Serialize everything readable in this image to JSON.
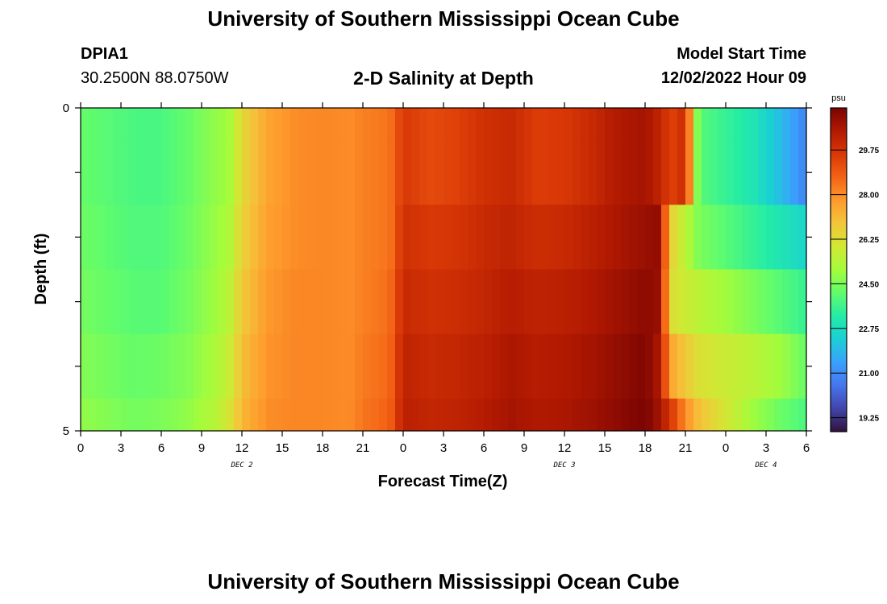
{
  "header": {
    "title": "University of Southern Mississippi Ocean Cube",
    "footer_title": "University of Southern Mississippi Ocean Cube",
    "station_id": "DPIA1",
    "station_coords": "30.2500N  88.0750W",
    "plot_title": "2-D Salinity at Depth",
    "model_start_label": "Model Start Time",
    "model_start_value": "12/02/2022 Hour 09"
  },
  "chart_data": {
    "type": "heatmap",
    "xlabel": "Forecast Time(Z)",
    "ylabel": "Depth (ft)",
    "x_tick_labels": [
      "0",
      "3",
      "6",
      "9",
      "12",
      "15",
      "18",
      "21",
      "0",
      "3",
      "6",
      "9",
      "12",
      "15",
      "18",
      "21",
      "0",
      "3",
      "6"
    ],
    "date_labels": [
      {
        "label": "DEC 2",
        "hour": 12
      },
      {
        "label": "DEC 3",
        "hour": 36
      },
      {
        "label": "DEC 4",
        "hour": 51
      }
    ],
    "y_tick_labels": [
      "0",
      "5"
    ],
    "ylim": [
      0,
      5
    ],
    "xlim_hours": [
      0,
      54
    ],
    "colorbar": {
      "unit": "psu",
      "tick_labels": [
        "29.75",
        "28.00",
        "26.25",
        "24.50",
        "22.75",
        "21.00",
        "19.25"
      ],
      "tick_values": [
        29.75,
        28.0,
        26.25,
        24.5,
        22.75,
        21.0,
        19.25
      ],
      "range": [
        18.7,
        31.4
      ],
      "colors": [
        "#30123b",
        "#4145ab",
        "#4675ed",
        "#39a2fc",
        "#1bcfd4",
        "#24eca6",
        "#61fc6c",
        "#a4fc3b",
        "#d1e834",
        "#f3c63a",
        "#fe9b2d",
        "#f36315",
        "#d93806",
        "#b11901",
        "#7a0403"
      ]
    },
    "depth_levels": [
      0,
      1,
      2,
      3,
      4,
      5
    ],
    "series": [
      {
        "depth_ft": 0,
        "values": [
          24.2,
          24.0,
          23.8,
          23.8,
          24.2,
          24.8,
          25.0,
          26.4,
          27.6,
          28.0,
          28.1,
          28.0,
          28.2,
          28.4,
          29.6,
          29.2,
          29.4,
          29.8,
          30.0,
          29.5,
          29.6,
          30.0,
          30.5,
          30.7,
          30.2,
          29.4,
          30.0,
          24.0,
          23.5,
          23.0,
          22.0,
          20.8
        ]
      },
      {
        "depth_ft": 1,
        "values": [
          24.2,
          24.0,
          23.8,
          23.8,
          24.2,
          24.8,
          25.0,
          26.4,
          27.6,
          28.0,
          28.1,
          28.0,
          28.2,
          28.4,
          29.6,
          29.2,
          29.4,
          29.8,
          30.0,
          29.5,
          29.6,
          30.0,
          30.5,
          30.7,
          30.2,
          29.4,
          30.0,
          24.0,
          23.5,
          23.0,
          22.0,
          20.8
        ]
      },
      {
        "depth_ft": 2,
        "values": [
          24.3,
          24.1,
          23.9,
          23.9,
          24.3,
          24.9,
          25.2,
          26.6,
          27.7,
          28.0,
          28.1,
          28.0,
          28.2,
          28.4,
          29.8,
          29.6,
          29.7,
          30.0,
          30.2,
          29.9,
          30.0,
          30.3,
          30.6,
          30.9,
          31.0,
          26.5,
          25.5,
          24.5,
          24.0,
          23.5,
          23.0,
          22.5
        ]
      },
      {
        "depth_ft": 3,
        "values": [
          24.4,
          24.2,
          24.0,
          24.0,
          24.4,
          25.0,
          25.4,
          26.8,
          27.8,
          28.1,
          28.1,
          28.0,
          28.2,
          28.5,
          30.0,
          29.8,
          29.9,
          30.1,
          30.4,
          30.2,
          30.3,
          30.5,
          30.8,
          31.1,
          30.9,
          26.2,
          25.8,
          25.5,
          25.0,
          24.5,
          24.0,
          23.5
        ]
      },
      {
        "depth_ft": 4,
        "values": [
          24.6,
          24.4,
          24.2,
          24.3,
          24.6,
          25.2,
          25.7,
          27.0,
          27.9,
          28.1,
          28.1,
          28.0,
          28.3,
          28.6,
          30.2,
          30.0,
          30.1,
          30.3,
          30.6,
          30.4,
          30.5,
          30.7,
          31.0,
          31.3,
          30.6,
          27.5,
          26.8,
          26.2,
          25.8,
          25.5,
          25.0,
          24.2
        ]
      },
      {
        "depth_ft": 5,
        "values": [
          24.8,
          24.6,
          24.4,
          24.5,
          24.8,
          25.4,
          26.0,
          27.2,
          28.0,
          28.1,
          28.1,
          28.0,
          28.4,
          28.7,
          30.3,
          30.1,
          30.2,
          30.4,
          30.7,
          30.5,
          30.6,
          30.8,
          31.1,
          31.4,
          30.8,
          29.5,
          28.0,
          27.0,
          26.0,
          25.0,
          24.3,
          23.8
        ]
      }
    ],
    "series_time_hours": [
      0,
      2,
      4,
      6,
      8,
      10,
      11,
      12,
      14,
      16,
      18,
      20,
      21,
      23,
      24,
      26,
      28,
      30,
      32,
      34,
      36,
      38,
      40,
      42,
      43,
      44,
      45,
      46,
      48,
      50,
      52,
      54
    ]
  }
}
